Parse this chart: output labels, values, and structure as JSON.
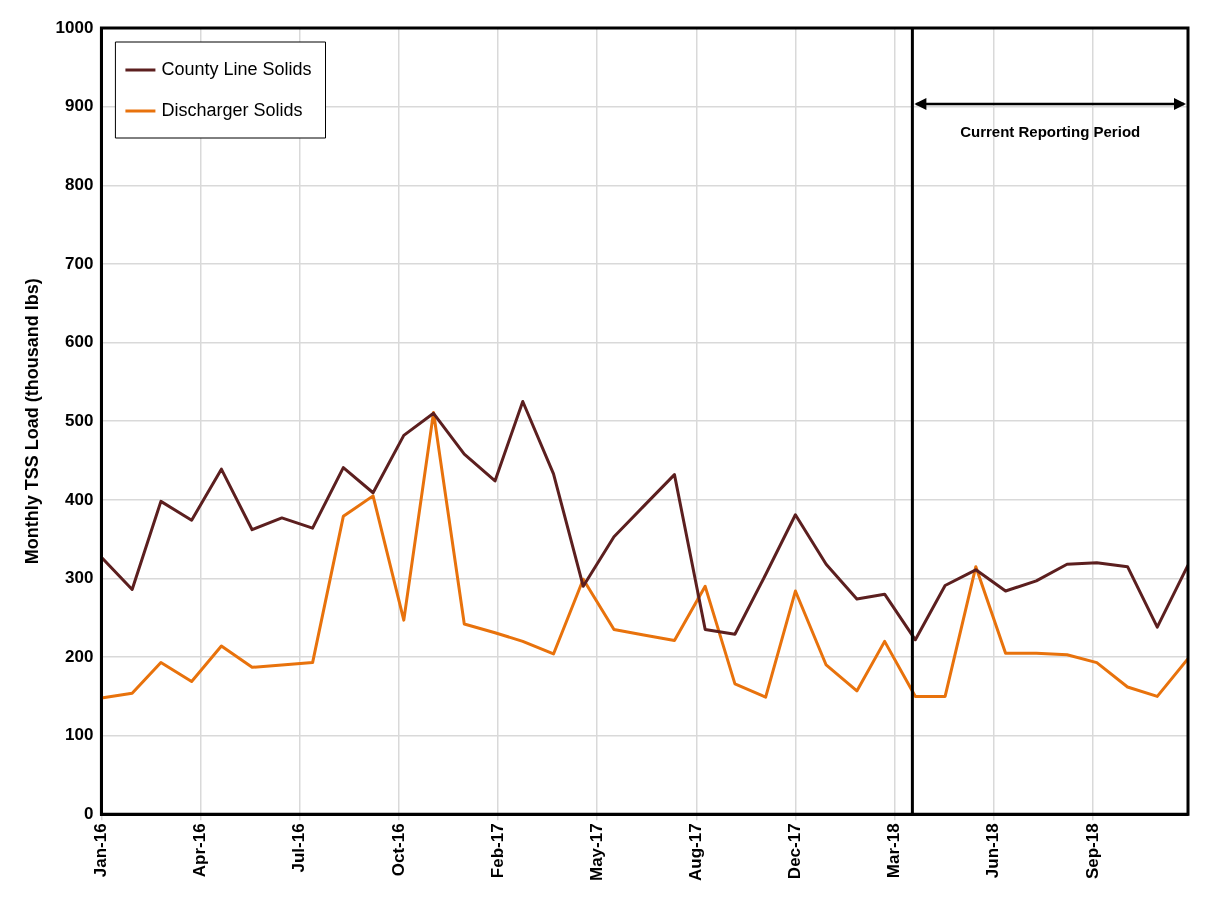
{
  "chart_data": {
    "type": "line",
    "ylabel": "Monthly TSS Load (thousand lbs)",
    "x": [
      "2016-01-01",
      "2016-02-01",
      "2016-03-01",
      "2016-04-01",
      "2016-05-01",
      "2016-06-01",
      "2016-07-01",
      "2016-08-01",
      "2016-09-01",
      "2016-10-01",
      "2016-11-01",
      "2016-12-01",
      "2017-01-01",
      "2017-02-01",
      "2017-03-01",
      "2017-04-01",
      "2017-05-01",
      "2017-06-01",
      "2017-07-01",
      "2017-08-01",
      "2017-09-01",
      "2017-10-01",
      "2017-11-01",
      "2017-12-01",
      "2018-01-01",
      "2018-02-01",
      "2018-03-01",
      "2018-04-01",
      "2018-05-01",
      "2018-06-01",
      "2018-07-01",
      "2018-08-01",
      "2018-09-01",
      "2018-10-01",
      "2018-11-01",
      "2018-12-01",
      "2019-01-01"
    ],
    "series": [
      {
        "name": "County Line Solids",
        "color": "#5c1f1f",
        "values": [
          327,
          286,
          398,
          374,
          439,
          362,
          377,
          364,
          441,
          409,
          482,
          510,
          458,
          424,
          525,
          433,
          290,
          353,
          392,
          432,
          235,
          229,
          305,
          381,
          318,
          274,
          280,
          222,
          291,
          311,
          284,
          297,
          318,
          320,
          315,
          238,
          317
        ]
      },
      {
        "name": "Discharger Solids",
        "color": "#e8720c",
        "values": [
          148,
          154,
          193,
          169,
          214,
          187,
          190,
          193,
          379,
          405,
          247,
          511,
          242,
          231,
          220,
          204,
          299,
          235,
          228,
          221,
          290,
          166,
          149,
          284,
          190,
          157,
          220,
          150,
          150,
          315,
          205,
          205,
          203,
          193,
          162,
          150,
          198
        ]
      }
    ],
    "xlim": [
      "2016-01-01",
      "2019-01-01"
    ],
    "xticks": [
      {
        "value": "2016-01-01",
        "label": "Jan-16"
      },
      {
        "value": "2016-04-10",
        "label": "Apr-16"
      },
      {
        "value": "2016-07-19",
        "label": "Jul-16"
      },
      {
        "value": "2016-10-27",
        "label": "Oct-16"
      },
      {
        "value": "2017-02-04",
        "label": "Feb-17"
      },
      {
        "value": "2017-05-15",
        "label": "May-17"
      },
      {
        "value": "2017-08-23",
        "label": "Aug-17"
      },
      {
        "value": "2017-12-01",
        "label": "Dec-17"
      },
      {
        "value": "2018-03-11",
        "label": "Mar-18"
      },
      {
        "value": "2018-06-19",
        "label": "Jun-18"
      },
      {
        "value": "2018-09-27",
        "label": "Sep-18"
      }
    ],
    "ylim": [
      0,
      1000
    ],
    "yticks": [
      0,
      100,
      200,
      300,
      400,
      500,
      600,
      700,
      800,
      900,
      1000
    ],
    "ref_lines": [
      {
        "axis": "x",
        "value": "2018-03-29",
        "color": "#000000"
      }
    ],
    "annotations": [
      "Current Reporting Period"
    ],
    "grid": true,
    "legend": "top left",
    "marker": "none",
    "line_style": "solid"
  }
}
